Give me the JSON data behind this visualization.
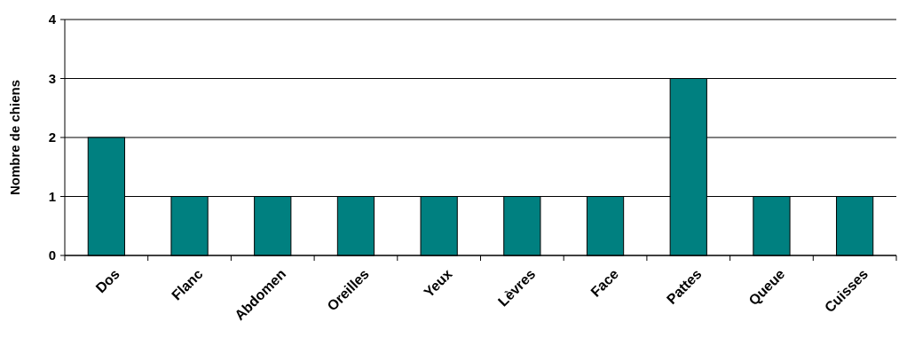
{
  "chart_data": {
    "type": "bar",
    "ylabel": "Nombre de chiens",
    "categories": [
      "Dos",
      "Flanc",
      "Abdomen",
      "Oreilles",
      "Yeux",
      "Lèvres",
      "Face",
      "Pattes",
      "Queue",
      "Cuisses"
    ],
    "values": [
      2,
      1,
      1,
      1,
      1,
      1,
      1,
      3,
      1,
      1
    ],
    "color": "#008080",
    "ylim": [
      0,
      4
    ],
    "yticks": [
      0,
      1,
      2,
      3,
      4
    ],
    "grid": "y"
  }
}
